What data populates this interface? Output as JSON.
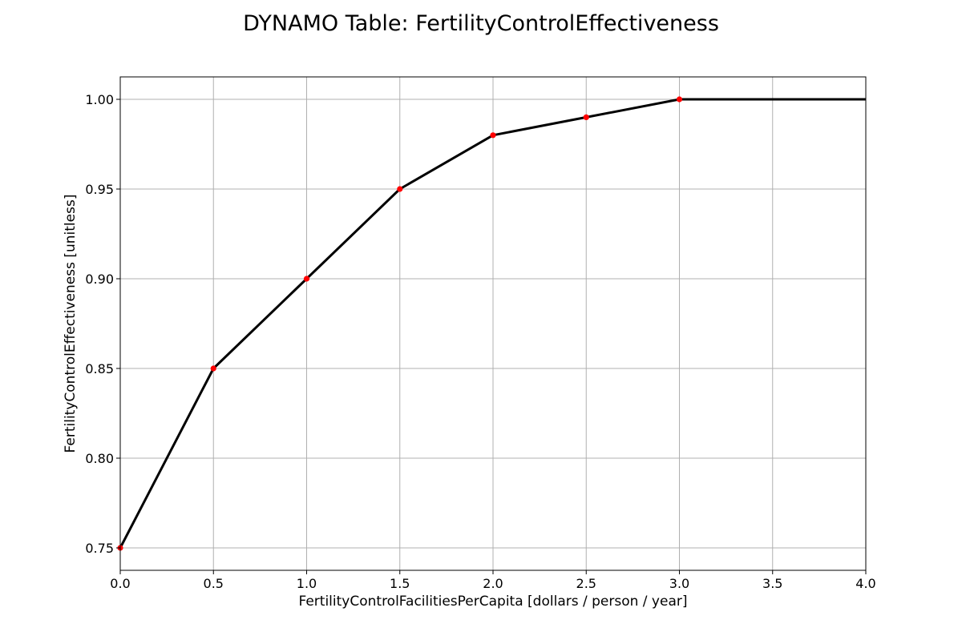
{
  "chart_data": {
    "type": "line",
    "title": "DYNAMO Table: FertilityControlEffectiveness",
    "xlabel": "FertilityControlFacilitiesPerCapita [dollars / person / year]",
    "ylabel": "FertilityControlEffectiveness [unitless]",
    "xlim": [
      0.0,
      4.0
    ],
    "ylim": [
      0.7375,
      1.0125
    ],
    "x_ticks": [
      "0.0",
      "0.5",
      "1.0",
      "1.5",
      "2.0",
      "2.5",
      "3.0",
      "3.5",
      "4.0"
    ],
    "y_ticks": [
      "0.75",
      "0.80",
      "0.85",
      "0.90",
      "0.95",
      "1.00"
    ],
    "grid": true,
    "series": [
      {
        "x": [
          0.0,
          0.5,
          1.0,
          1.5,
          2.0,
          2.5,
          3.0,
          4.0
        ],
        "y": [
          0.75,
          0.85,
          0.9,
          0.95,
          0.98,
          0.99,
          1.0,
          1.0
        ],
        "color": "#000000"
      }
    ],
    "points": {
      "x": [
        0.0,
        0.5,
        1.0,
        1.5,
        2.0,
        2.5,
        3.0
      ],
      "y": [
        0.75,
        0.85,
        0.9,
        0.95,
        0.98,
        0.99,
        1.0
      ],
      "color": "#ff0000"
    }
  }
}
